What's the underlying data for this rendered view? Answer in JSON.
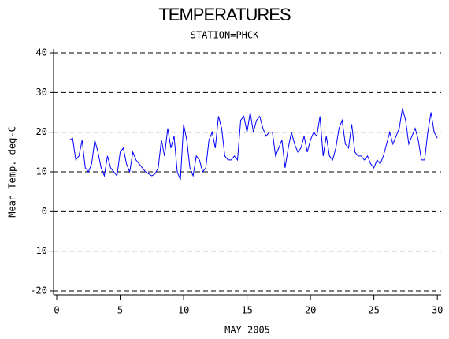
{
  "chart_data": {
    "type": "line",
    "title": "TEMPERATURES",
    "subtitle": "STATION=PHCK",
    "x_label": "MAY 2005",
    "y_label": "Mean Temp. deg-C",
    "xlim": [
      -0.25,
      30.3
    ],
    "xticks": [
      0,
      5,
      10,
      15,
      20,
      25,
      30
    ],
    "ylim": [
      -21,
      41
    ],
    "yticks": [
      -20,
      -10,
      0,
      10,
      20,
      30,
      40
    ],
    "grid": true,
    "series": [
      {
        "color": "#0000ff",
        "x": [
          1,
          1.25,
          1.5,
          1.75,
          2,
          2.25,
          2.5,
          2.75,
          3,
          3.25,
          3.5,
          3.75,
          4,
          4.25,
          4.5,
          4.75,
          5,
          5.25,
          5.5,
          5.75,
          6,
          6.25,
          6.5,
          6.75,
          7,
          7.25,
          7.5,
          7.75,
          8,
          8.25,
          8.5,
          8.75,
          9,
          9.25,
          9.5,
          9.75,
          10,
          10.25,
          10.5,
          10.75,
          11,
          11.25,
          11.5,
          11.75,
          12,
          12.25,
          12.5,
          12.75,
          13,
          13.25,
          13.5,
          13.75,
          14,
          14.25,
          14.5,
          14.75,
          15,
          15.25,
          15.5,
          15.75,
          16,
          16.25,
          16.5,
          16.75,
          17,
          17.25,
          17.5,
          17.75,
          18,
          18.25,
          18.5,
          18.75,
          19,
          19.25,
          19.5,
          19.75,
          20,
          20.25,
          20.5,
          20.75,
          21,
          21.25,
          21.5,
          21.75,
          22,
          22.25,
          22.5,
          22.75,
          23,
          23.25,
          23.5,
          23.75,
          24,
          24.25,
          24.5,
          24.75,
          25,
          25.25,
          25.5,
          25.75,
          26,
          26.25,
          26.5,
          26.75,
          27,
          27.25,
          27.5,
          27.75,
          28,
          28.25,
          28.5,
          28.75,
          29,
          29.25,
          29.5,
          29.75,
          30
        ],
        "values": [
          18,
          18.5,
          13,
          14,
          18,
          11,
          10,
          12,
          18,
          15,
          11,
          9,
          14,
          11,
          10,
          9,
          15,
          16,
          12,
          10,
          15,
          13,
          12,
          11,
          10,
          9.5,
          9,
          9.5,
          11,
          18,
          14,
          21,
          16,
          19,
          10,
          8,
          22,
          18,
          11,
          9,
          14,
          13,
          10,
          11,
          18,
          20,
          16,
          24,
          21,
          14,
          13,
          13,
          14,
          13,
          23,
          24,
          20,
          25,
          20,
          23,
          24,
          21,
          19,
          20,
          20,
          14,
          16,
          18,
          11,
          16,
          20,
          17,
          15,
          16,
          19,
          15,
          18,
          20,
          19,
          24,
          14,
          19,
          14,
          13,
          16,
          21,
          23,
          17,
          16,
          22,
          15,
          14,
          14,
          13,
          14,
          12,
          11,
          13,
          12,
          14,
          17,
          20,
          17,
          19,
          21,
          26,
          23,
          17,
          19,
          21,
          18,
          13,
          13,
          20,
          25,
          20,
          18.5
        ]
      }
    ]
  }
}
